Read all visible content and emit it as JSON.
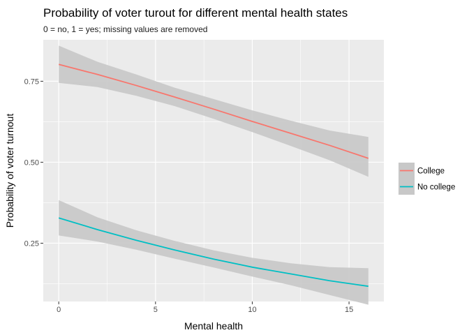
{
  "chart_data": {
    "type": "line",
    "title": "Probability of voter turout for different mental health states",
    "subtitle": "0 = no, 1 = yes; missing values are removed",
    "xlabel": "Mental health",
    "ylabel": "Probability of voter turnout",
    "xlim": [
      -0.8,
      16.8
    ],
    "ylim": [
      0.07,
      0.878
    ],
    "x_ticks": [
      0,
      5,
      10,
      15
    ],
    "x_tick_labels": [
      "0",
      "5",
      "10",
      "15"
    ],
    "y_ticks": [
      0.25,
      0.5,
      0.75
    ],
    "y_tick_labels": [
      "0.25",
      "0.50",
      "0.75"
    ],
    "grid": true,
    "legend_position": "right",
    "series": [
      {
        "name": "College",
        "color": "#F8766D",
        "x": [
          0,
          2,
          4,
          6,
          8,
          10,
          12,
          14,
          16
        ],
        "y": [
          0.802,
          0.771,
          0.737,
          0.701,
          0.664,
          0.626,
          0.589,
          0.552,
          0.512
        ],
        "ci_lower": [
          0.745,
          0.732,
          0.705,
          0.673,
          0.634,
          0.593,
          0.55,
          0.506,
          0.455
        ],
        "ci_upper": [
          0.86,
          0.81,
          0.771,
          0.73,
          0.695,
          0.66,
          0.628,
          0.598,
          0.578
        ]
      },
      {
        "name": "No college",
        "color": "#00BFC4",
        "x": [
          0,
          2,
          4,
          6,
          8,
          10,
          12,
          14,
          16
        ],
        "y": [
          0.328,
          0.292,
          0.259,
          0.229,
          0.201,
          0.176,
          0.155,
          0.134,
          0.117
        ],
        "ci_lower": [
          0.274,
          0.255,
          0.23,
          0.202,
          0.175,
          0.147,
          0.12,
          0.09,
          0.06
        ],
        "ci_upper": [
          0.383,
          0.33,
          0.29,
          0.257,
          0.228,
          0.205,
          0.188,
          0.176,
          0.173
        ]
      }
    ],
    "colors": {
      "panel": "#EBEBEB",
      "grid": "#FFFFFF",
      "ribbon": "#C8C8C8"
    }
  }
}
